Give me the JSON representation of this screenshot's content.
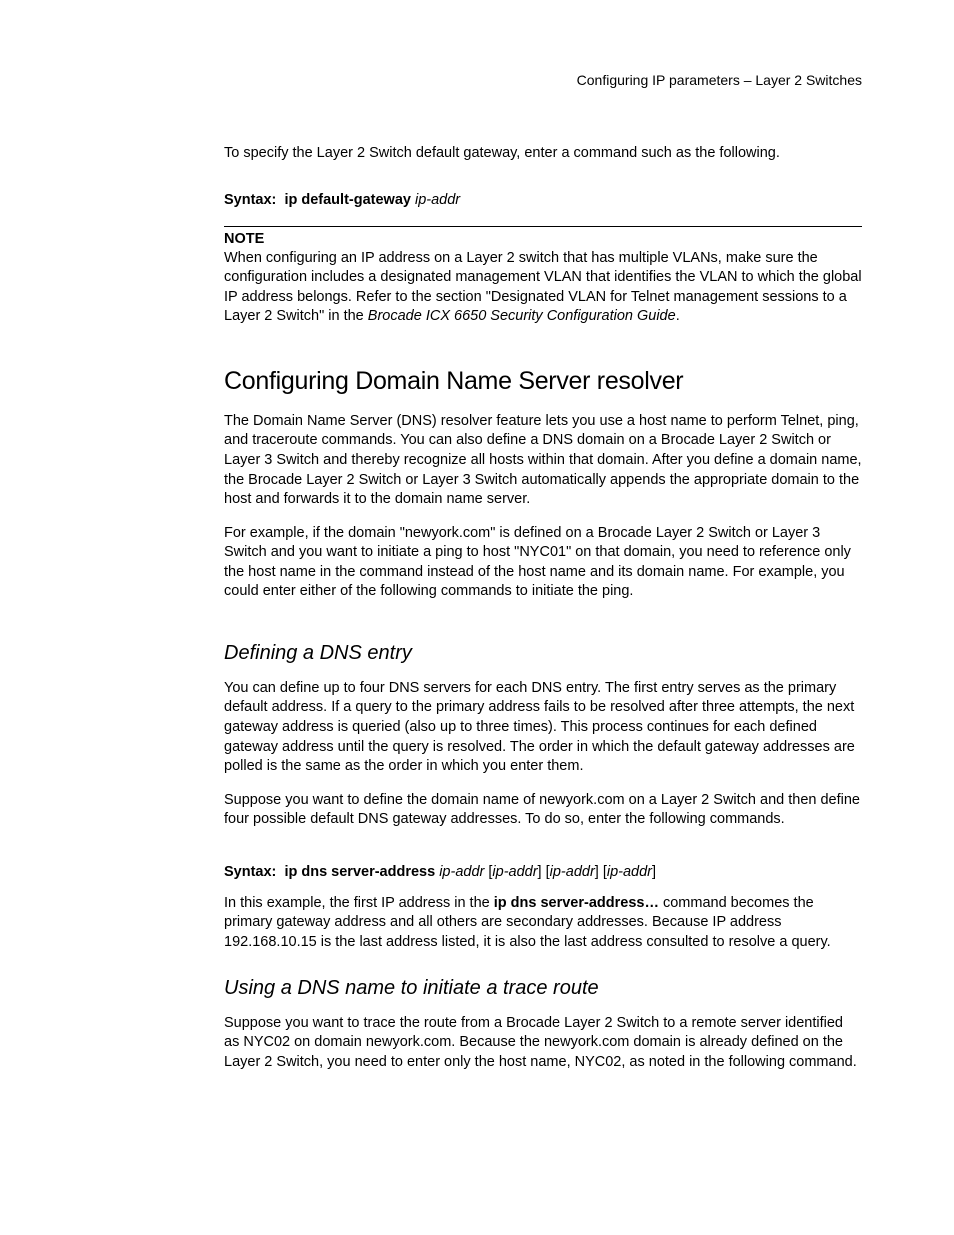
{
  "header": {
    "breadcrumb": "Configuring IP parameters – Layer 2 Switches"
  },
  "intro": {
    "p1": "To specify the Layer 2 Switch default gateway, enter a command such as the following."
  },
  "syntax1": {
    "label": "Syntax:",
    "cmd": "ip default-gateway",
    "arg": "ip-addr"
  },
  "note": {
    "head": "NOTE",
    "body_a": "When configuring an IP address on a Layer 2 switch that has multiple VLANs, make sure the configuration includes a designated management VLAN that identifies the VLAN to which the global IP address belongs. Refer to the section \"Designated VLAN for Telnet management sessions to a Layer 2 Switch\" in the ",
    "body_ital": "Brocade ICX 6650 Security Configuration Guide",
    "body_b": "."
  },
  "h2_dns": "Configuring Domain Name Server resolver",
  "dns": {
    "p1": "The Domain Name Server (DNS) resolver feature lets you use a host name to perform Telnet, ping, and traceroute commands. You can also define a DNS domain on a Brocade Layer 2 Switch or Layer 3 Switch and thereby recognize all hosts within that domain. After you define a domain name, the Brocade Layer 2 Switch or Layer 3 Switch automatically appends the appropriate domain to the host and forwards it to the domain name server.",
    "p2": "For example, if the domain \"newyork.com\" is defined on a Brocade Layer 2 Switch or Layer 3 Switch and you want to initiate a ping to host \"NYC01\" on that domain, you need to reference only the host name in the command instead of the host name and its domain name. For example, you could enter either of the following commands to initiate the ping."
  },
  "h3_defining": "Defining a DNS entry",
  "defining": {
    "p1": "You can define up to four DNS servers for each DNS entry. The first entry serves as the primary default address. If a query to the primary address fails to be resolved after three attempts, the next gateway address is queried (also up to three times). This process continues for each defined gateway address until the query is resolved. The order in which the default gateway addresses are polled is the same as the order in which you enter them.",
    "p2": "Suppose you want to define the domain name of newyork.com on a Layer 2 Switch and then define four possible default DNS gateway addresses. To do so, enter the following commands."
  },
  "syntax2": {
    "label": "Syntax:",
    "cmd": "ip dns server-address",
    "arg": "ip-addr",
    "opt1a": " [",
    "opt1b": "ip-addr",
    "opt1c": "]",
    "opt2a": " [",
    "opt2b": "ip-addr",
    "opt2c": "]",
    "opt3a": " [",
    "opt3b": "ip-addr",
    "opt3c": "]"
  },
  "example": {
    "p_a": "In this example, the first IP address in the ",
    "p_bold": "ip dns server-address…",
    "p_b": " command becomes the primary gateway address and all others are secondary addresses. Because IP address 192.168.10.15 is the last address listed, it is also the last address consulted to resolve a query."
  },
  "h3_trace": "Using a DNS name to initiate a trace route",
  "trace": {
    "p1": "Suppose you want to trace the route from a Brocade Layer 2 Switch to a remote server identified as NYC02 on domain newyork.com. Because the newyork.com domain is already defined on the Layer 2 Switch, you need to enter only the host name, NYC02, as noted in the following command."
  }
}
